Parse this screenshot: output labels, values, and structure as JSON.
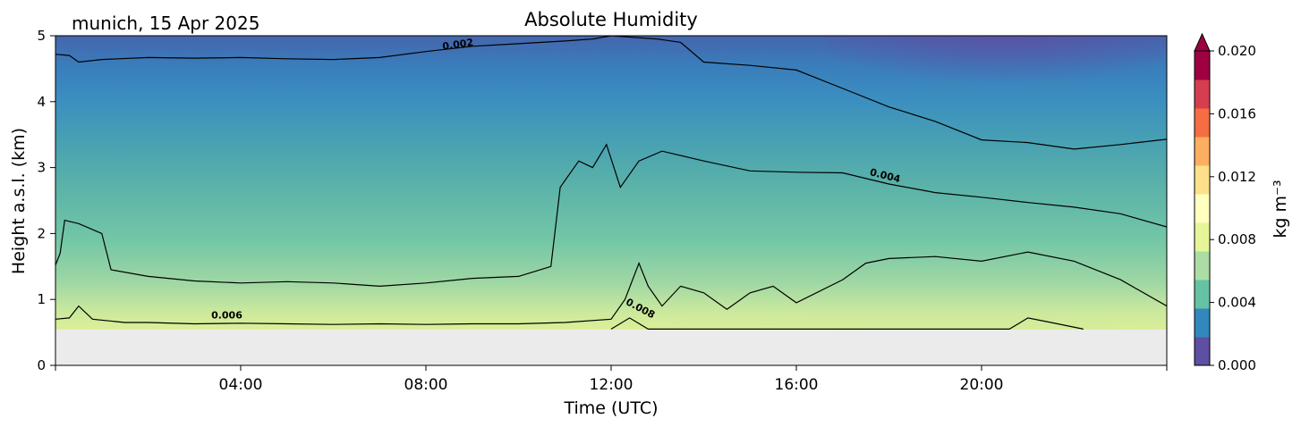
{
  "chart_data": {
    "type": "heatmap",
    "title": "Absolute Humidity",
    "subtitle": "munich, 15 Apr 2025",
    "xlabel": "Time (UTC)",
    "ylabel": "Height a.s.l. (km)",
    "xlim": [
      0,
      24
    ],
    "ylim": [
      0,
      5
    ],
    "x_ticks": [
      4,
      8,
      12,
      16,
      20
    ],
    "x_tick_labels": [
      "04:00",
      "08:00",
      "12:00",
      "16:00",
      "20:00"
    ],
    "y_ticks": [
      0,
      1,
      2,
      3,
      4,
      5
    ],
    "y_tick_labels": [
      "0",
      "1",
      "2",
      "3",
      "4",
      "5"
    ],
    "no_data_below_km": 0.55,
    "colorbar": {
      "label": "kg m⁻³",
      "range": [
        0.0,
        0.02
      ],
      "ticks": [
        0.0,
        0.004,
        0.008,
        0.012,
        0.016,
        0.02
      ],
      "tick_labels": [
        "0.000",
        "0.004",
        "0.008",
        "0.012",
        "0.016",
        "0.020"
      ],
      "extend": "max",
      "colors": [
        "#5e4fa2",
        "#3288bd",
        "#66c2a5",
        "#abdda4",
        "#e6f598",
        "#ffffbf",
        "#fee08b",
        "#fdae61",
        "#f46d43",
        "#d53e4f",
        "#9e0142"
      ]
    },
    "contours": [
      {
        "level": 0.002,
        "label": "0.002",
        "points": [
          [
            0,
            4.72
          ],
          [
            0.3,
            4.7
          ],
          [
            0.5,
            4.6
          ],
          [
            1,
            4.64
          ],
          [
            2,
            4.67
          ],
          [
            3,
            4.66
          ],
          [
            4,
            4.67
          ],
          [
            5,
            4.65
          ],
          [
            6,
            4.64
          ],
          [
            7,
            4.67
          ],
          [
            8,
            4.76
          ],
          [
            9,
            4.84
          ],
          [
            10,
            4.88
          ],
          [
            11,
            4.92
          ],
          [
            11.6,
            4.95
          ],
          [
            12,
            5.0
          ],
          [
            13,
            4.95
          ],
          [
            13.5,
            4.9
          ],
          [
            14,
            4.6
          ],
          [
            15,
            4.55
          ],
          [
            16,
            4.48
          ],
          [
            17,
            4.2
          ],
          [
            18,
            3.92
          ],
          [
            19,
            3.7
          ],
          [
            20,
            3.42
          ],
          [
            21,
            3.38
          ],
          [
            22,
            3.28
          ],
          [
            23,
            3.35
          ],
          [
            24,
            3.43
          ]
        ]
      },
      {
        "level": 0.004,
        "label": "0.004",
        "points": [
          [
            0,
            1.52
          ],
          [
            0.1,
            1.7
          ],
          [
            0.2,
            2.2
          ],
          [
            0.5,
            2.15
          ],
          [
            1,
            2.0
          ],
          [
            1.2,
            1.45
          ],
          [
            2,
            1.35
          ],
          [
            3,
            1.28
          ],
          [
            4,
            1.25
          ],
          [
            5,
            1.27
          ],
          [
            6,
            1.25
          ],
          [
            7,
            1.2
          ],
          [
            8,
            1.25
          ],
          [
            9,
            1.32
          ],
          [
            10,
            1.35
          ],
          [
            10.7,
            1.5
          ],
          [
            10.9,
            2.7
          ],
          [
            11.3,
            3.1
          ],
          [
            11.6,
            3.0
          ],
          [
            11.9,
            3.35
          ],
          [
            12.2,
            2.7
          ],
          [
            12.6,
            3.1
          ],
          [
            13.1,
            3.25
          ],
          [
            14,
            3.1
          ],
          [
            15,
            2.95
          ],
          [
            16,
            2.93
          ],
          [
            17,
            2.92
          ],
          [
            18,
            2.75
          ],
          [
            19,
            2.62
          ],
          [
            20,
            2.55
          ],
          [
            21,
            2.47
          ],
          [
            22,
            2.4
          ],
          [
            23,
            2.3
          ],
          [
            24,
            2.1
          ]
        ]
      },
      {
        "level": 0.006,
        "label": "0.006",
        "points": [
          [
            0,
            0.7
          ],
          [
            0.3,
            0.72
          ],
          [
            0.5,
            0.9
          ],
          [
            0.8,
            0.7
          ],
          [
            1.5,
            0.65
          ],
          [
            2,
            0.65
          ],
          [
            3,
            0.63
          ],
          [
            4,
            0.64
          ],
          [
            5,
            0.63
          ],
          [
            6,
            0.62
          ],
          [
            7,
            0.63
          ],
          [
            8,
            0.62
          ],
          [
            9,
            0.63
          ],
          [
            10,
            0.63
          ],
          [
            11,
            0.65
          ],
          [
            12,
            0.7
          ],
          [
            12.3,
            1.0
          ],
          [
            12.6,
            1.55
          ],
          [
            12.8,
            1.2
          ],
          [
            13.1,
            0.9
          ],
          [
            13.5,
            1.2
          ],
          [
            14,
            1.1
          ],
          [
            14.5,
            0.85
          ],
          [
            15,
            1.1
          ],
          [
            15.5,
            1.2
          ],
          [
            16,
            0.95
          ],
          [
            17,
            1.3
          ],
          [
            17.5,
            1.55
          ],
          [
            18,
            1.62
          ],
          [
            19,
            1.65
          ],
          [
            20,
            1.58
          ],
          [
            21,
            1.72
          ],
          [
            22,
            1.58
          ],
          [
            23,
            1.3
          ],
          [
            24,
            0.9
          ]
        ]
      },
      {
        "level": 0.008,
        "label": "0.008",
        "points": [
          [
            12.0,
            0.55
          ],
          [
            12.4,
            0.72
          ],
          [
            12.8,
            0.55
          ],
          [
            20.6,
            0.55
          ],
          [
            21,
            0.72
          ],
          [
            21.5,
            0.65
          ],
          [
            22.2,
            0.55
          ]
        ]
      }
    ]
  }
}
